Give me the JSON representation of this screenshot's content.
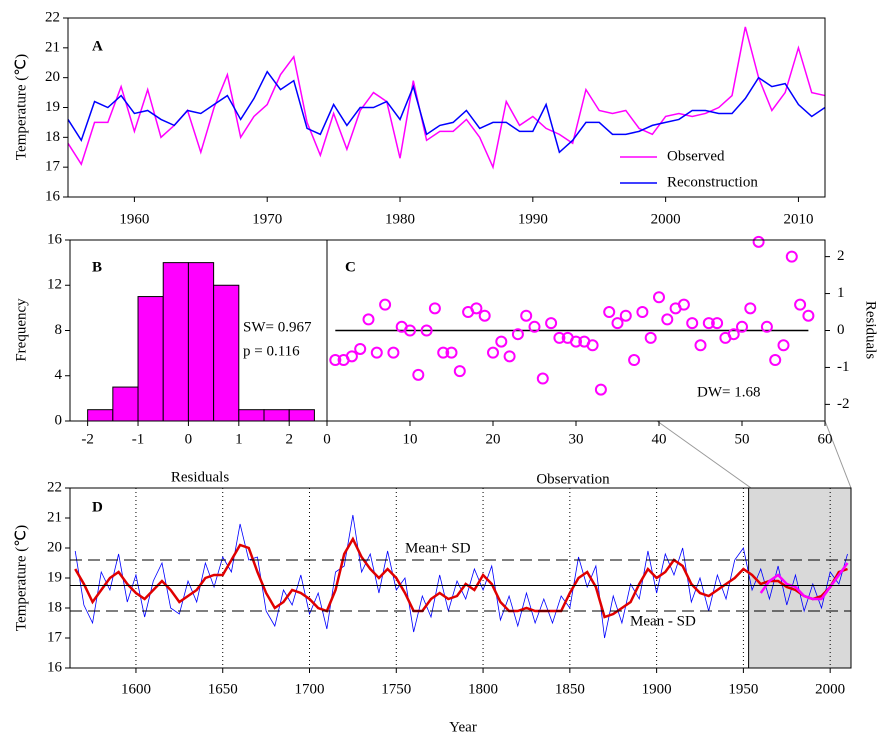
{
  "chart_data": [
    {
      "type": "line",
      "label": "A",
      "ylabel": "Temperature (℃)",
      "x": [
        1955,
        1956,
        1957,
        1958,
        1959,
        1960,
        1961,
        1962,
        1963,
        1964,
        1965,
        1966,
        1967,
        1968,
        1969,
        1970,
        1971,
        1972,
        1973,
        1974,
        1975,
        1976,
        1977,
        1978,
        1979,
        1980,
        1981,
        1982,
        1983,
        1984,
        1985,
        1986,
        1987,
        1988,
        1989,
        1990,
        1991,
        1992,
        1993,
        1994,
        1995,
        1996,
        1997,
        1998,
        1999,
        2000,
        2001,
        2002,
        2003,
        2004,
        2005,
        2006,
        2007,
        2008,
        2009,
        2010,
        2011,
        2012
      ],
      "series": [
        {
          "name": "Observed",
          "color": "#ff00ff",
          "values": [
            17.8,
            17.1,
            18.5,
            18.5,
            19.7,
            18.2,
            19.6,
            18.0,
            18.4,
            18.9,
            17.5,
            19.0,
            20.1,
            18.0,
            18.7,
            19.1,
            20.1,
            20.7,
            18.5,
            17.4,
            18.8,
            17.6,
            18.9,
            19.5,
            19.2,
            17.3,
            19.9,
            17.9,
            18.2,
            18.2,
            18.6,
            18.0,
            17.0,
            19.2,
            18.4,
            18.7,
            18.3,
            18.1,
            17.8,
            19.6,
            18.9,
            18.8,
            18.9,
            18.3,
            18.1,
            18.7,
            18.8,
            18.7,
            18.8,
            19.0,
            19.4,
            21.7,
            20.0,
            18.9,
            19.5,
            21.0,
            19.5,
            19.4
          ]
        },
        {
          "name": "Reconstruction",
          "color": "#0000ff",
          "values": [
            18.6,
            17.9,
            19.2,
            19.0,
            19.4,
            18.8,
            18.9,
            18.6,
            18.4,
            18.9,
            18.8,
            19.1,
            19.4,
            18.6,
            19.3,
            20.2,
            19.6,
            19.9,
            18.3,
            18.1,
            19.1,
            18.4,
            19.0,
            19.0,
            19.2,
            18.6,
            19.7,
            18.1,
            18.4,
            18.5,
            18.9,
            18.3,
            18.5,
            18.5,
            18.2,
            18.2,
            19.1,
            17.5,
            17.9,
            18.5,
            18.5,
            18.1,
            18.1,
            18.2,
            18.4,
            18.5,
            18.6,
            18.9,
            18.9,
            18.8,
            18.8,
            19.3,
            20.0,
            19.7,
            19.8,
            19.1,
            18.7,
            19.0
          ]
        }
      ],
      "xlim": [
        1955,
        2012
      ],
      "xticks": [
        1960,
        1970,
        1980,
        1990,
        2000,
        2010
      ],
      "ylim": [
        16,
        22
      ],
      "yticks": [
        16,
        17,
        18,
        19,
        20,
        21,
        22
      ],
      "legend": "lower right"
    },
    {
      "type": "histogram",
      "label": "B",
      "xlabel": "Residuals",
      "ylabel": "Frequency",
      "color": "#ff00ff",
      "bins": [
        -2,
        -1.5,
        -1,
        -0.5,
        0,
        0.5,
        1,
        1.5,
        2,
        2.5
      ],
      "counts": [
        1,
        3,
        11,
        14,
        14,
        12,
        1,
        1,
        1
      ],
      "xlim": [
        -2.35,
        2.75
      ],
      "xticks": [
        -2,
        -1,
        0,
        1,
        2
      ],
      "ylim": [
        0,
        16
      ],
      "yticks": [
        0,
        4,
        8,
        12,
        16
      ],
      "annotations": [
        "SW= 0.967",
        "p = 0.116"
      ]
    },
    {
      "type": "scatter",
      "label": "C",
      "xlabel": "Observation",
      "ylabel": "Residuals",
      "color": "#ff00ff",
      "x": [
        1,
        2,
        3,
        4,
        5,
        6,
        7,
        8,
        9,
        10,
        11,
        12,
        13,
        14,
        15,
        16,
        17,
        18,
        19,
        20,
        21,
        22,
        23,
        24,
        25,
        26,
        27,
        28,
        29,
        30,
        31,
        32,
        33,
        34,
        35,
        36,
        37,
        38,
        39,
        40,
        41,
        42,
        43,
        44,
        45,
        46,
        47,
        48,
        49,
        50,
        51,
        52,
        53,
        54,
        55,
        56,
        57,
        58
      ],
      "values": [
        -0.8,
        -0.8,
        -0.7,
        -0.5,
        0.3,
        -0.6,
        0.7,
        -0.6,
        0.1,
        0.0,
        -1.2,
        0.0,
        0.6,
        -0.6,
        -0.6,
        -1.1,
        0.5,
        0.6,
        0.4,
        -0.6,
        -0.3,
        -0.7,
        -0.1,
        0.4,
        0.1,
        -1.3,
        0.2,
        -0.2,
        -0.2,
        -0.3,
        -0.3,
        -0.4,
        -1.6,
        0.5,
        0.2,
        0.4,
        -0.8,
        0.5,
        -0.2,
        0.9,
        0.3,
        0.6,
        0.7,
        0.2,
        -0.4,
        0.2,
        0.2,
        -0.2,
        -0.1,
        0.1,
        0.6,
        2.4,
        0.1,
        -0.8,
        -0.4,
        2.0,
        0.7,
        0.4
      ],
      "hline": 0,
      "xlim": [
        0,
        60
      ],
      "xticks": [
        0,
        10,
        20,
        30,
        40,
        50,
        60
      ],
      "ylim": [
        -2.45,
        2.45
      ],
      "yticks": [
        -2,
        -1,
        0,
        1,
        2
      ],
      "annotations": [
        "DW= 1.68"
      ]
    },
    {
      "type": "line",
      "label": "D",
      "xlabel": "Year",
      "ylabel": "Temperature (℃)",
      "x": [
        1565,
        1570,
        1575,
        1580,
        1585,
        1590,
        1595,
        1600,
        1605,
        1610,
        1615,
        1620,
        1625,
        1630,
        1635,
        1640,
        1645,
        1650,
        1655,
        1660,
        1665,
        1670,
        1675,
        1680,
        1685,
        1690,
        1695,
        1700,
        1705,
        1710,
        1715,
        1720,
        1725,
        1730,
        1735,
        1740,
        1745,
        1750,
        1755,
        1760,
        1765,
        1770,
        1775,
        1780,
        1785,
        1790,
        1795,
        1800,
        1805,
        1810,
        1815,
        1820,
        1825,
        1830,
        1835,
        1840,
        1845,
        1850,
        1855,
        1860,
        1865,
        1870,
        1875,
        1880,
        1885,
        1890,
        1895,
        1900,
        1905,
        1910,
        1915,
        1920,
        1925,
        1930,
        1935,
        1940,
        1945,
        1950,
        1955,
        1960,
        1965,
        1970,
        1975,
        1980,
        1985,
        1990,
        1995,
        2000,
        2005,
        2010
      ],
      "series": [
        {
          "color": "#0000ff",
          "width": 0.8,
          "values": [
            19.9,
            18.1,
            17.5,
            19.2,
            18.6,
            19.8,
            18.2,
            19.1,
            17.7,
            18.9,
            19.5,
            18.0,
            17.8,
            18.9,
            18.2,
            19.5,
            18.7,
            19.7,
            19.2,
            20.8,
            19.6,
            19.7,
            17.9,
            17.4,
            18.6,
            18.1,
            19.1,
            17.8,
            18.5,
            17.3,
            19.2,
            19.4,
            21.1,
            19.2,
            19.8,
            18.5,
            19.9,
            18.6,
            19.0,
            17.2,
            18.4,
            17.7,
            19.1,
            17.9,
            18.9,
            18.3,
            19.3,
            18.6,
            19.4,
            17.6,
            18.4,
            17.4,
            18.5,
            17.5,
            18.3,
            17.5,
            18.4,
            18.0,
            19.7,
            18.7,
            19.4,
            17.0,
            18.4,
            17.5,
            18.8,
            18.3,
            19.9,
            18.5,
            19.8,
            19.1,
            20.0,
            18.2,
            19.0,
            17.9,
            19.1,
            18.3,
            19.6,
            20.0,
            18.6,
            19.3,
            18.3,
            19.4,
            18.1,
            19.1,
            17.9,
            18.8,
            18.0,
            19.2,
            18.8,
            19.8
          ]
        },
        {
          "color": "#e00000",
          "width": 2.5,
          "values": [
            19.3,
            18.8,
            18.2,
            18.6,
            19.0,
            19.2,
            18.8,
            18.5,
            18.3,
            18.6,
            18.9,
            18.6,
            18.2,
            18.4,
            18.6,
            19.0,
            19.1,
            19.1,
            19.6,
            20.1,
            20.0,
            19.2,
            18.5,
            18.0,
            18.2,
            18.6,
            18.5,
            18.3,
            18.0,
            17.9,
            18.6,
            19.8,
            20.3,
            19.7,
            19.3,
            19.0,
            19.3,
            19.0,
            18.5,
            17.9,
            17.9,
            18.3,
            18.5,
            18.3,
            18.4,
            18.8,
            18.6,
            19.1,
            18.8,
            18.2,
            17.9,
            17.9,
            18.0,
            17.9,
            17.9,
            17.9,
            17.9,
            18.5,
            19.0,
            19.2,
            18.7,
            17.7,
            17.8,
            18.0,
            18.2,
            18.8,
            19.3,
            19.0,
            19.2,
            19.6,
            19.4,
            18.8,
            18.5,
            18.4,
            18.6,
            18.8,
            19.0,
            19.3,
            19.1,
            18.8,
            18.9,
            18.9,
            18.7,
            18.6,
            18.4,
            18.3,
            18.4,
            18.7,
            19.2,
            19.3
          ]
        },
        {
          "color": "#ff00ff",
          "width": 2.5,
          "x": [
            1960,
            1965,
            1970,
            1975,
            1980,
            1985,
            1990,
            1995,
            2000,
            2005,
            2010
          ],
          "values": [
            18.5,
            18.9,
            19.1,
            18.8,
            18.7,
            18.4,
            18.3,
            18.3,
            18.7,
            19.1,
            19.5
          ]
        }
      ],
      "reference_lines": [
        {
          "value": 19.6,
          "label": "Mean+ SD",
          "dash": true
        },
        {
          "value": 18.75,
          "dash": false
        },
        {
          "value": 17.9,
          "label": "Mean - SD",
          "dash": true
        }
      ],
      "shade_xlim": [
        1953,
        2012
      ],
      "xgrid": true,
      "xlim": [
        1562,
        2012
      ],
      "xticks": [
        1600,
        1650,
        1700,
        1750,
        1800,
        1850,
        1900,
        1950,
        2000
      ],
      "ylim": [
        16,
        22
      ],
      "yticks": [
        16,
        17,
        18,
        19,
        20,
        21,
        22
      ]
    }
  ]
}
